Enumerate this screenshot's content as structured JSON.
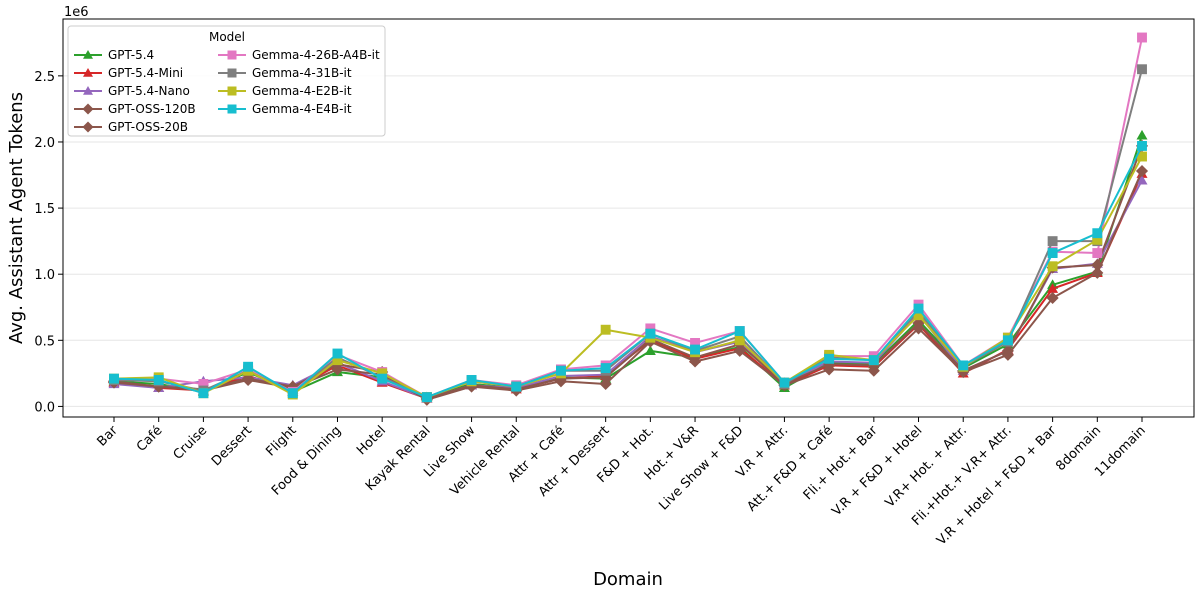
{
  "chart_data": {
    "type": "line",
    "title": "",
    "xlabel": "Domain",
    "ylabel": "Avg. Assistant Agent Tokens",
    "y_multiplier_label": "1e6",
    "ylim": [
      -0.08,
      2.93
    ],
    "yticks": [
      0.0,
      0.5,
      1.0,
      1.5,
      2.0,
      2.5
    ],
    "ytick_labels": [
      "0.0",
      "0.5",
      "1.0",
      "1.5",
      "2.0",
      "2.5"
    ],
    "grid": "horizontal",
    "legend": {
      "title": "Model",
      "placement": "top-left",
      "columns": 2
    },
    "categories": [
      "Bar",
      "Café",
      "Cruise",
      "Dessert",
      "Flight",
      "Food & Dining",
      "Hotel",
      "Kayak Rental",
      "Live Show",
      "Vehicle Rental",
      "Attr + Café",
      "Attr + Dessert",
      "F&D + Hot.",
      "Hot.+ V&R",
      "Live Show + F&D",
      "V.R + Attr.",
      "Att.+ F&D + Café",
      "Fli.+ Hot.+ Bar",
      "V.R + F&D + Hotel",
      "V.R+ Hot. + Attr.",
      "Fli.+Hot.+ V.R+ Attr.",
      "V.R + Hotel + F&D + Bar",
      "8domain",
      "11domain"
    ],
    "series": [
      {
        "name": "GPT-5.4",
        "color": "#2ca02c",
        "marker": "triangle",
        "values": [
          0.19,
          0.17,
          0.11,
          0.26,
          0.11,
          0.26,
          0.22,
          0.07,
          0.17,
          0.14,
          0.22,
          0.21,
          0.42,
          0.37,
          0.45,
          0.14,
          0.33,
          0.32,
          0.65,
          0.29,
          0.47,
          0.92,
          1.02,
          2.05
        ]
      },
      {
        "name": "GPT-5.4-Mini",
        "color": "#d62728",
        "marker": "triangle",
        "values": [
          0.18,
          0.14,
          0.12,
          0.23,
          0.13,
          0.31,
          0.18,
          0.06,
          0.16,
          0.13,
          0.21,
          0.23,
          0.5,
          0.36,
          0.44,
          0.16,
          0.31,
          0.3,
          0.62,
          0.25,
          0.43,
          0.89,
          1.01,
          1.76
        ]
      },
      {
        "name": "GPT-5.4-Nano",
        "color": "#9467bd",
        "marker": "triangle",
        "values": [
          0.17,
          0.14,
          0.19,
          0.22,
          0.16,
          0.33,
          0.19,
          0.06,
          0.16,
          0.14,
          0.23,
          0.24,
          0.53,
          0.41,
          0.49,
          0.18,
          0.34,
          0.33,
          0.7,
          0.27,
          0.42,
          1.04,
          1.08,
          1.71
        ]
      },
      {
        "name": "GPT-OSS-120B",
        "color": "#8c564b",
        "marker": "diamond",
        "values": [
          0.19,
          0.15,
          0.13,
          0.21,
          0.15,
          0.32,
          0.26,
          0.06,
          0.16,
          0.13,
          0.21,
          0.22,
          0.51,
          0.37,
          0.47,
          0.17,
          0.32,
          0.31,
          0.63,
          0.27,
          0.42,
          1.05,
          1.07,
          1.97
        ]
      },
      {
        "name": "GPT-OSS-20B",
        "color": "#8c564b",
        "marker": "diamond",
        "values": [
          0.18,
          0.15,
          0.12,
          0.2,
          0.14,
          0.28,
          0.24,
          0.05,
          0.15,
          0.12,
          0.19,
          0.17,
          0.49,
          0.34,
          0.42,
          0.16,
          0.28,
          0.27,
          0.59,
          0.26,
          0.39,
          0.82,
          1.01,
          1.78
        ]
      },
      {
        "name": "Gemma-4-26B-A4B-it",
        "color": "#e377c2",
        "marker": "square",
        "values": [
          0.2,
          0.21,
          0.17,
          0.28,
          0.11,
          0.39,
          0.26,
          0.07,
          0.2,
          0.16,
          0.28,
          0.31,
          0.59,
          0.48,
          0.57,
          0.18,
          0.38,
          0.38,
          0.77,
          0.31,
          0.52,
          1.17,
          1.16,
          2.79
        ]
      },
      {
        "name": "Gemma-4-31B-it",
        "color": "#7f7f7f",
        "marker": "square",
        "values": [
          0.2,
          0.19,
          0.12,
          0.27,
          0.1,
          0.37,
          0.22,
          0.07,
          0.19,
          0.15,
          0.27,
          0.27,
          0.55,
          0.42,
          0.53,
          0.17,
          0.37,
          0.35,
          0.72,
          0.3,
          0.49,
          1.25,
          1.25,
          2.55
        ]
      },
      {
        "name": "Gemma-4-E2B-it",
        "color": "#bcbd22",
        "marker": "square",
        "values": [
          0.21,
          0.22,
          0.1,
          0.27,
          0.09,
          0.35,
          0.25,
          0.07,
          0.19,
          0.15,
          0.25,
          0.58,
          0.52,
          0.41,
          0.5,
          0.18,
          0.39,
          0.35,
          0.69,
          0.3,
          0.52,
          1.06,
          1.26,
          1.89
        ]
      },
      {
        "name": "Gemma-4-E4B-it",
        "color": "#17becf",
        "marker": "square",
        "values": [
          0.21,
          0.2,
          0.1,
          0.3,
          0.1,
          0.4,
          0.21,
          0.07,
          0.2,
          0.15,
          0.27,
          0.29,
          0.55,
          0.43,
          0.57,
          0.18,
          0.36,
          0.35,
          0.74,
          0.31,
          0.5,
          1.16,
          1.31,
          1.97
        ]
      }
    ]
  }
}
